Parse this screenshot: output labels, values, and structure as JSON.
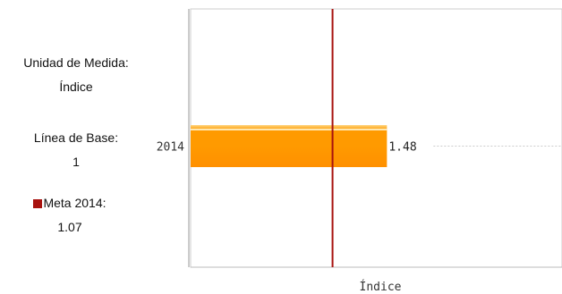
{
  "info": {
    "unit_label": "Unidad de Medida:",
    "unit_value": "Índice",
    "baseline_label": "Línea de Base:",
    "baseline_value": "1",
    "goal_label": "Meta 2014:",
    "goal_value": "1.07"
  },
  "colors": {
    "bar_gradient": [
      "#ffd37a",
      "#ff9a00",
      "#ff9000"
    ],
    "goal_line": "#a8120f",
    "axis": "#999999"
  },
  "chart_data": {
    "type": "bar",
    "orientation": "horizontal",
    "categories": [
      "2014"
    ],
    "values": [
      1.48
    ],
    "value_labels": [
      "1.48"
    ],
    "xlabel": "Índice",
    "ylabel": "",
    "xlim": [
      0,
      2.8
    ],
    "goal_line": {
      "name": "Meta 2014",
      "value": 1.07
    },
    "grid": false,
    "legend": "left"
  }
}
